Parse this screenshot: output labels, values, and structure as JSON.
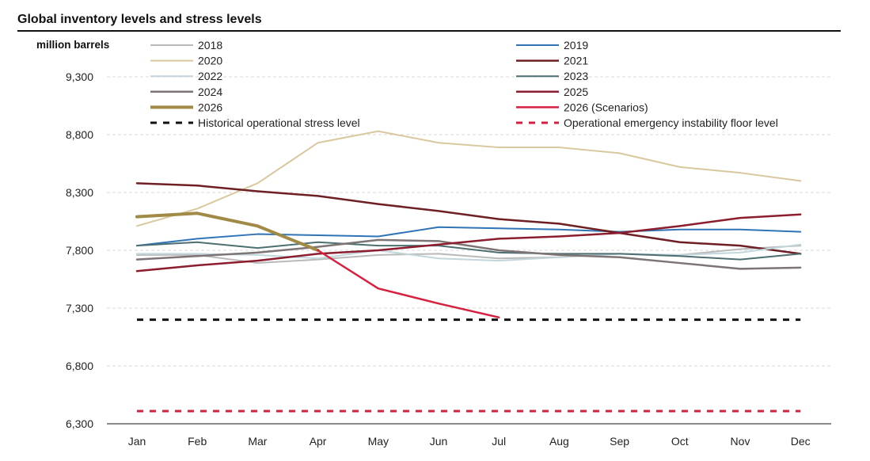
{
  "chart_data": {
    "type": "line",
    "title": "Global inventory levels and stress levels",
    "ylabel": "million barrels",
    "xlabel": "",
    "ylim": [
      6300,
      9600
    ],
    "yticks": [
      6300,
      6800,
      7300,
      7800,
      8300,
      8800,
      9300
    ],
    "ytick_labels": [
      "6,300",
      "6,800",
      "7,300",
      "7,800",
      "8,300",
      "8,800",
      "9,300"
    ],
    "categories": [
      "Jan",
      "Feb",
      "Mar",
      "Apr",
      "May",
      "Jun",
      "Jul",
      "Aug",
      "Sep",
      "Oct",
      "Nov",
      "Dec"
    ],
    "grid": "horizontal dashed",
    "legend_placement": "top",
    "series": [
      {
        "name": "2018",
        "color": "#b9b9b9",
        "width": 2,
        "dash": "",
        "legend_col": 0,
        "legend_row": 0,
        "values": [
          7760,
          7760,
          7690,
          7720,
          7760,
          7770,
          7730,
          7740,
          7770,
          7760,
          7810,
          7840
        ]
      },
      {
        "name": "2019",
        "color": "#2f75b5",
        "width": 2,
        "dash": "",
        "legend_col": 1,
        "legend_row": 0,
        "values": [
          7840,
          7900,
          7940,
          7930,
          7920,
          8000,
          7990,
          7980,
          7960,
          7980,
          7980,
          7960
        ]
      },
      {
        "name": "2020",
        "color": "#d9c89e",
        "width": 2,
        "dash": "",
        "legend_col": 0,
        "legend_row": 1,
        "values": [
          8010,
          8160,
          8380,
          8730,
          8830,
          8730,
          8690,
          8690,
          8640,
          8520,
          8470,
          8400
        ]
      },
      {
        "name": "2021",
        "color": "#6e1f24",
        "width": 2.5,
        "dash": "",
        "legend_col": 1,
        "legend_row": 1,
        "values": [
          8380,
          8360,
          8310,
          8270,
          8200,
          8140,
          8070,
          8030,
          7950,
          7870,
          7840,
          7770
        ]
      },
      {
        "name": "2022",
        "color": "#c2d6dc",
        "width": 2,
        "dash": "",
        "legend_col": 0,
        "legend_row": 2,
        "values": [
          7770,
          7770,
          7760,
          7730,
          7800,
          7730,
          7710,
          7740,
          7770,
          7760,
          7780,
          7850
        ]
      },
      {
        "name": "2023",
        "color": "#4d6f72",
        "width": 2,
        "dash": "",
        "legend_col": 1,
        "legend_row": 2,
        "values": [
          7840,
          7870,
          7820,
          7870,
          7840,
          7840,
          7780,
          7770,
          7770,
          7750,
          7720,
          7770
        ]
      },
      {
        "name": "2024",
        "color": "#7d7476",
        "width": 2.5,
        "dash": "",
        "legend_col": 0,
        "legend_row": 3,
        "values": [
          7720,
          7750,
          7780,
          7830,
          7890,
          7880,
          7800,
          7760,
          7740,
          7690,
          7640,
          7650
        ]
      },
      {
        "name": "2025",
        "color": "#8c1d2e",
        "width": 2.5,
        "dash": "",
        "legend_col": 1,
        "legend_row": 3,
        "values": [
          7620,
          7670,
          7710,
          7770,
          7800,
          7850,
          7900,
          7920,
          7950,
          8010,
          8080,
          8110
        ]
      },
      {
        "name": "2026",
        "color": "#a08a45",
        "width": 4,
        "dash": "",
        "legend_col": 0,
        "legend_row": 4,
        "values": [
          8090,
          8120,
          8010,
          7800,
          null,
          null,
          null,
          null,
          null,
          null,
          null,
          null
        ]
      },
      {
        "name": "2026 (Scenarios)",
        "color": "#d6203f",
        "width": 2.5,
        "dash": "",
        "legend_col": 1,
        "legend_row": 4,
        "values": [
          null,
          null,
          null,
          7800,
          7470,
          7340,
          7220,
          null,
          null,
          null,
          null,
          null
        ]
      },
      {
        "name": "Historical operational stress level",
        "color": "#111111",
        "width": 3,
        "dash": "8,8",
        "legend_col": 0,
        "legend_row": 5,
        "values": [
          7200,
          7200,
          7200,
          7200,
          7200,
          7200,
          7200,
          7200,
          7200,
          7200,
          7200,
          7200
        ]
      },
      {
        "name": "Operational emergency instability floor level",
        "color": "#d6203f",
        "width": 3,
        "dash": "8,8",
        "legend_col": 1,
        "legend_row": 5,
        "values": [
          6410,
          6410,
          6410,
          6410,
          6410,
          6410,
          6410,
          6410,
          6410,
          6410,
          6410,
          6410
        ]
      }
    ]
  }
}
